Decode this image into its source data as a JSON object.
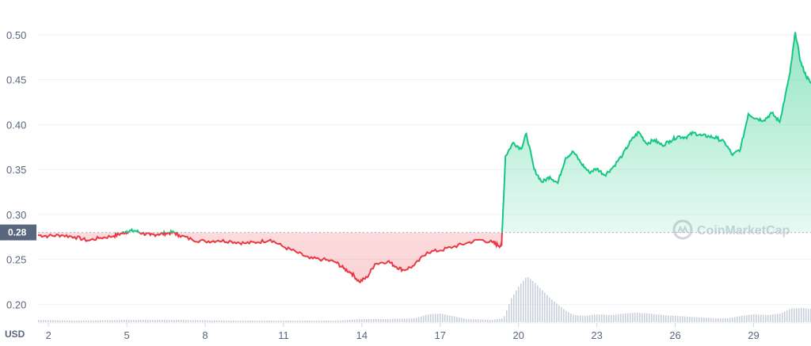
{
  "chart_data": {
    "type": "line",
    "currency": "USD",
    "y_ticks": [
      "0.50",
      "0.45",
      "0.40",
      "0.35",
      "0.30",
      "0.25",
      "0.20"
    ],
    "y_tick_values": [
      0.5,
      0.45,
      0.4,
      0.35,
      0.3,
      0.25,
      0.2
    ],
    "x_ticks": [
      "2",
      "5",
      "8",
      "11",
      "14",
      "17",
      "20",
      "23",
      "26",
      "29"
    ],
    "x_tick_values": [
      2,
      5,
      8,
      11,
      14,
      17,
      20,
      23,
      26,
      29
    ],
    "xlim": [
      1.6,
      31.2
    ],
    "ylim": [
      0.18,
      0.53
    ],
    "reference_price": 0.28,
    "reference_label": "0.28",
    "up_color": "#16c784",
    "down_color": "#ea3943",
    "watermark": "CoinMarketCap",
    "price": {
      "x": [
        1.6,
        2.0,
        2.5,
        3.0,
        3.5,
        4.0,
        4.5,
        4.8,
        5.0,
        5.3,
        5.6,
        5.9,
        6.2,
        6.5,
        6.8,
        7.0,
        7.5,
        8.0,
        8.5,
        9.0,
        9.5,
        10.0,
        10.5,
        11.0,
        11.5,
        12.0,
        12.5,
        13.0,
        13.3,
        13.6,
        13.9,
        14.2,
        14.5,
        15.0,
        15.3,
        15.6,
        16.0,
        16.5,
        17.0,
        17.5,
        18.0,
        18.5,
        19.0,
        19.2,
        19.35,
        19.5,
        19.8,
        20.1,
        20.3,
        20.6,
        20.9,
        21.2,
        21.5,
        21.8,
        22.1,
        22.4,
        22.7,
        23.0,
        23.3,
        23.6,
        24.0,
        24.3,
        24.6,
        24.9,
        25.2,
        25.5,
        25.8,
        26.1,
        26.4,
        26.7,
        27.0,
        27.3,
        27.6,
        27.9,
        28.2,
        28.5,
        28.8,
        29.1,
        29.4,
        29.7,
        30.0,
        30.2,
        30.4,
        30.6,
        30.8,
        31.0,
        31.2
      ],
      "y": [
        0.277,
        0.276,
        0.277,
        0.275,
        0.271,
        0.274,
        0.276,
        0.279,
        0.281,
        0.282,
        0.279,
        0.277,
        0.278,
        0.279,
        0.28,
        0.277,
        0.272,
        0.27,
        0.271,
        0.27,
        0.268,
        0.269,
        0.272,
        0.264,
        0.258,
        0.251,
        0.25,
        0.247,
        0.24,
        0.235,
        0.225,
        0.23,
        0.245,
        0.248,
        0.242,
        0.238,
        0.243,
        0.258,
        0.26,
        0.264,
        0.268,
        0.272,
        0.269,
        0.266,
        0.265,
        0.365,
        0.38,
        0.373,
        0.39,
        0.35,
        0.336,
        0.342,
        0.335,
        0.363,
        0.37,
        0.357,
        0.347,
        0.351,
        0.344,
        0.352,
        0.367,
        0.382,
        0.392,
        0.379,
        0.383,
        0.377,
        0.382,
        0.387,
        0.386,
        0.391,
        0.388,
        0.387,
        0.385,
        0.38,
        0.366,
        0.373,
        0.412,
        0.407,
        0.405,
        0.413,
        0.403,
        0.43,
        0.458,
        0.503,
        0.47,
        0.455,
        0.446
      ]
    },
    "volume": {
      "x": [
        1.6,
        3.0,
        5.0,
        7.0,
        9.0,
        11.0,
        13.0,
        14.0,
        15.0,
        16.0,
        16.5,
        17.0,
        18.0,
        19.0,
        19.4,
        19.7,
        20.0,
        20.3,
        20.6,
        20.9,
        21.2,
        21.5,
        21.8,
        22.1,
        22.5,
        23.0,
        23.5,
        24.0,
        24.5,
        25.0,
        25.5,
        26.0,
        26.5,
        27.0,
        27.5,
        28.0,
        28.5,
        29.0,
        29.5,
        30.0,
        30.4,
        30.8,
        31.2
      ],
      "v": [
        3,
        2,
        3,
        3,
        2,
        2,
        2,
        4,
        4,
        5,
        10,
        11,
        4,
        3,
        5,
        30,
        46,
        58,
        50,
        40,
        30,
        22,
        14,
        9,
        8,
        10,
        9,
        11,
        12,
        11,
        9,
        8,
        7,
        6,
        5,
        5,
        8,
        10,
        9,
        11,
        17,
        18,
        17
      ]
    }
  }
}
